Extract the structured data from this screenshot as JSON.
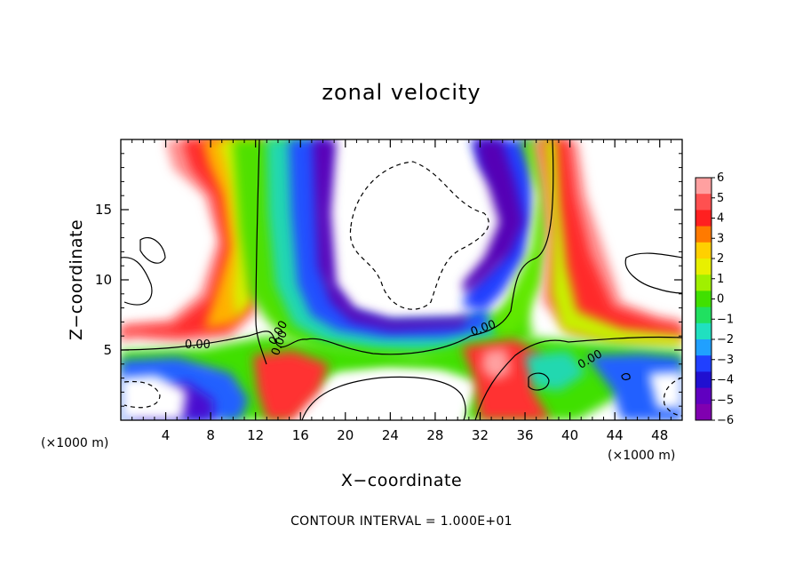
{
  "chart_data": {
    "type": "heatmap",
    "title": "zonal velocity",
    "xlabel": "X−coordinate",
    "ylabel": "Z−coordinate",
    "x_unit": "(×1000 m)",
    "z_unit": "(×1000 m)",
    "footnote": "CONTOUR INTERVAL = 1.000E+01",
    "xlim": [
      0,
      50
    ],
    "ylim": [
      0,
      20
    ],
    "x_ticks": [
      "4",
      "8",
      "12",
      "16",
      "20",
      "24",
      "28",
      "32",
      "36",
      "40",
      "44",
      "48"
    ],
    "x_tick_values": [
      4,
      8,
      12,
      16,
      20,
      24,
      28,
      32,
      36,
      40,
      44,
      48
    ],
    "y_ticks": [
      "5",
      "10",
      "15"
    ],
    "y_tick_values": [
      5,
      10,
      15
    ],
    "colorbar": {
      "labels": [
        "6",
        "5",
        "4",
        "3",
        "2",
        "1",
        "0",
        "−1",
        "−2",
        "−3",
        "−4",
        "−5",
        "−6"
      ],
      "min": -6,
      "max": 6,
      "colors": [
        "#ffa0a0",
        "#ff5050",
        "#ff2020",
        "#ff7a00",
        "#ffd000",
        "#e8f000",
        "#a0f000",
        "#40e000",
        "#20e060",
        "#20e0c0",
        "#20a0ff",
        "#2040ff",
        "#2010d0",
        "#6000c0",
        "#8000b0"
      ]
    },
    "contour_labels": [
      "0.00",
      "0.00",
      "0.00",
      "0.00",
      "0.00"
    ],
    "grid": false
  }
}
